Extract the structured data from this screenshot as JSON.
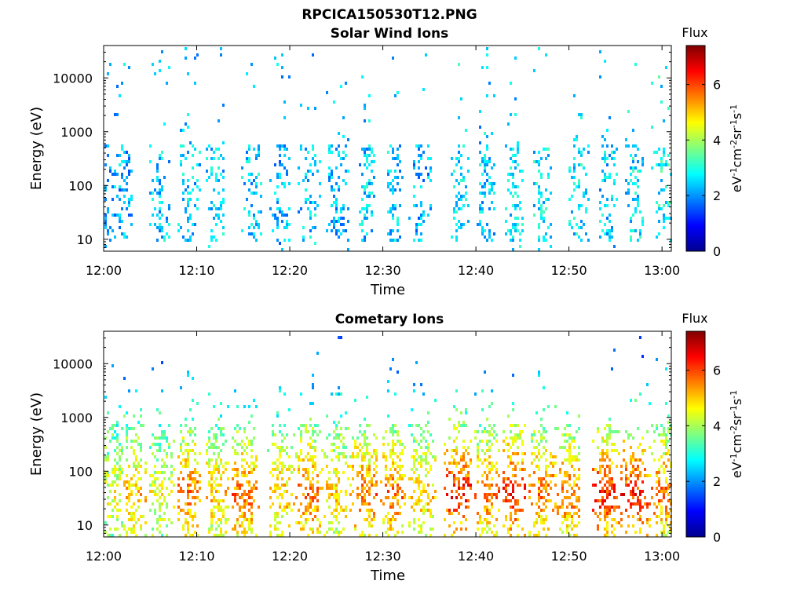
{
  "figure_title": "RPCICA150530T12.PNG",
  "colors": {
    "colormap": "jet",
    "axes": "#000000",
    "background": "#ffffff"
  },
  "chart_data": [
    {
      "type": "heatmap",
      "title": "Solar Wind Ions",
      "xlabel": "Time",
      "ylabel": "Energy (eV)",
      "x_tick_labels": [
        "12:00",
        "12:10",
        "12:20",
        "12:30",
        "12:40",
        "12:50",
        "13:00"
      ],
      "y_tick_labels": [
        "10",
        "100",
        "1000",
        "10000"
      ],
      "y_scale": "log",
      "xlim": [
        "12:00",
        "13:01"
      ],
      "ylim": [
        6,
        40000
      ],
      "colorbar": {
        "label": "Flux",
        "units": "eV-1cm-2sr-1s-1",
        "tick_labels": [
          "0",
          "2",
          "4",
          "6"
        ],
        "range": [
          0,
          7.4
        ]
      },
      "activity": [
        {
          "time": "12:00",
          "level": 1
        },
        {
          "time": "12:02",
          "level": 2
        },
        {
          "time": "12:06",
          "level": 3
        },
        {
          "time": "12:09",
          "level": 3
        },
        {
          "time": "12:12",
          "level": 3
        },
        {
          "time": "12:16",
          "level": 3
        },
        {
          "time": "12:19",
          "level": 2
        },
        {
          "time": "12:22",
          "level": 3
        },
        {
          "time": "12:25",
          "level": 2
        },
        {
          "time": "12:28",
          "level": 3
        },
        {
          "time": "12:31",
          "level": 3
        },
        {
          "time": "12:34",
          "level": 2
        },
        {
          "time": "12:38",
          "level": 4
        },
        {
          "time": "12:41",
          "level": 3
        },
        {
          "time": "12:44",
          "level": 4
        },
        {
          "time": "12:47",
          "level": 4
        },
        {
          "time": "12:51",
          "level": 4
        },
        {
          "time": "12:54",
          "level": 3
        },
        {
          "time": "12:57",
          "level": 4
        },
        {
          "time": "13:00",
          "level": 5
        }
      ]
    },
    {
      "type": "heatmap",
      "title": "Cometary Ions",
      "xlabel": "Time",
      "ylabel": "Energy (eV)",
      "x_tick_labels": [
        "12:00",
        "12:10",
        "12:20",
        "12:30",
        "12:40",
        "12:50",
        "13:00"
      ],
      "y_tick_labels": [
        "10",
        "100",
        "1000",
        "10000"
      ],
      "y_scale": "log",
      "xlim": [
        "12:00",
        "13:01"
      ],
      "ylim": [
        6,
        40000
      ],
      "colorbar": {
        "label": "Flux",
        "units": "eV-1cm-2sr-1s-1",
        "tick_labels": [
          "0",
          "2",
          "4",
          "6"
        ],
        "range": [
          0,
          7.4
        ]
      },
      "activity": [
        {
          "time": "12:01",
          "level": 4
        },
        {
          "time": "12:03",
          "level": 5
        },
        {
          "time": "12:06",
          "level": 4
        },
        {
          "time": "12:09",
          "level": 6
        },
        {
          "time": "12:12",
          "level": 5
        },
        {
          "time": "12:15",
          "level": 6
        },
        {
          "time": "12:19",
          "level": 5
        },
        {
          "time": "12:22",
          "level": 6
        },
        {
          "time": "12:25",
          "level": 5
        },
        {
          "time": "12:28",
          "level": 6
        },
        {
          "time": "12:31",
          "level": 6
        },
        {
          "time": "12:34",
          "level": 5
        },
        {
          "time": "12:38",
          "level": 7
        },
        {
          "time": "12:41",
          "level": 6
        },
        {
          "time": "12:44",
          "level": 7
        },
        {
          "time": "12:47",
          "level": 6
        },
        {
          "time": "12:50",
          "level": 6
        },
        {
          "time": "12:54",
          "level": 7
        },
        {
          "time": "12:57",
          "level": 7
        },
        {
          "time": "13:00",
          "level": 6
        }
      ]
    }
  ]
}
